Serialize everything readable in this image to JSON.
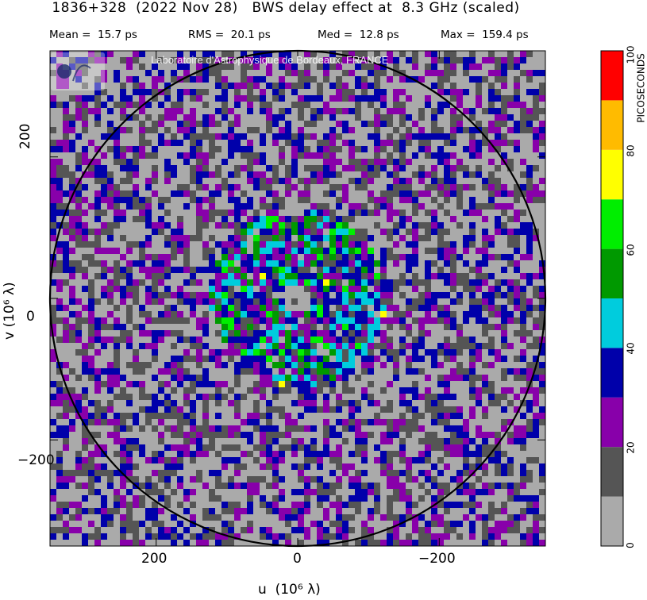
{
  "header": {
    "title": "1836+328  (2022 Nov 28)   BWS delay effect at  8.3 GHz (scaled)",
    "stats": [
      {
        "label": "Mean =",
        "value": "15.7 ps"
      },
      {
        "label": "RMS =",
        "value": "20.1 ps"
      },
      {
        "label": "Med =",
        "value": "12.8 ps"
      },
      {
        "label": "Max =",
        "value": "159.4 ps"
      }
    ]
  },
  "watermark": "Laboratoire d'Astrophysique de Bordeaux, FRANCE",
  "colorbar": {
    "title": "PICOSECONDS",
    "ticks": [
      "0",
      "20",
      "40",
      "60",
      "80",
      "100"
    ],
    "colors": [
      "#aaaaaa",
      "#555555",
      "#8800aa",
      "#0000aa",
      "#00ccdd",
      "#009900",
      "#00ee00",
      "#ffff00",
      "#ffbb00",
      "#ff0000"
    ]
  },
  "chart_data": {
    "type": "heatmap",
    "title": "1836+328  (2022 Nov 28)   BWS delay effect at  8.3 GHz (scaled)",
    "xlabel": "u  (10⁶ λ)",
    "ylabel": "v  (10⁶ λ)",
    "x_ticks": [
      "200",
      "0",
      "−200"
    ],
    "y_ticks": [
      "200",
      "0",
      "−200"
    ],
    "xlim": [
      350,
      -350
    ],
    "ylim": [
      -350,
      350
    ],
    "circle_radius": 350,
    "value_range": [
      0,
      100
    ],
    "value_unit": "PICOSECONDS",
    "statistics": {
      "mean": 15.7,
      "rms": 20.1,
      "median": 12.8,
      "max": 159.4
    }
  }
}
